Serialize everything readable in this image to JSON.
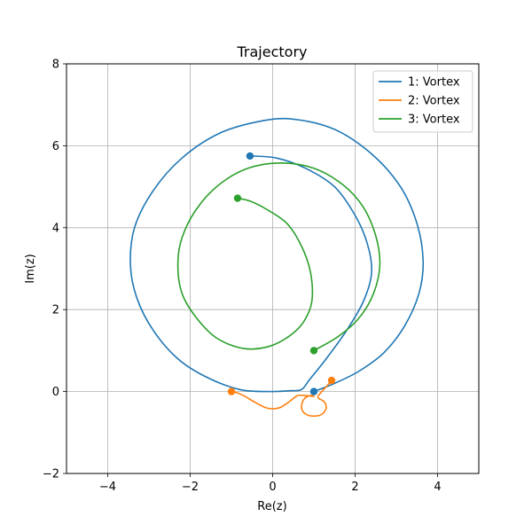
{
  "chart_data": {
    "type": "line",
    "title": "Trajectory",
    "xlabel": "Re(z)",
    "ylabel": "Im(z)",
    "xlim": [
      -5,
      5
    ],
    "ylim": [
      -2,
      8
    ],
    "xticks": [
      -4,
      -2,
      0,
      2,
      4
    ],
    "yticks": [
      -2,
      0,
      2,
      4,
      6,
      8
    ],
    "xtick_labels": [
      "−4",
      "−2",
      "0",
      "2",
      "4"
    ],
    "ytick_labels": [
      "−2",
      "0",
      "2",
      "4",
      "6",
      "8"
    ],
    "grid": true,
    "legend": {
      "position": "top-right"
    },
    "series": [
      {
        "name": "1: Vortex",
        "color": "#1f77b4",
        "start": [
          1.0,
          0.0
        ],
        "end": [
          -0.55,
          5.75
        ],
        "points": [
          [
            1.0,
            0.0
          ],
          [
            1.5,
            0.2
          ],
          [
            2.1,
            0.5
          ],
          [
            2.7,
            0.95
          ],
          [
            3.2,
            1.6
          ],
          [
            3.55,
            2.4
          ],
          [
            3.65,
            3.2
          ],
          [
            3.5,
            4.1
          ],
          [
            3.1,
            5.0
          ],
          [
            2.4,
            5.8
          ],
          [
            1.5,
            6.4
          ],
          [
            0.5,
            6.65
          ],
          [
            -0.3,
            6.6
          ],
          [
            -1.3,
            6.3
          ],
          [
            -2.2,
            5.7
          ],
          [
            -2.9,
            4.9
          ],
          [
            -3.35,
            4.0
          ],
          [
            -3.45,
            3.1
          ],
          [
            -3.3,
            2.3
          ],
          [
            -2.9,
            1.5
          ],
          [
            -2.3,
            0.8
          ],
          [
            -1.6,
            0.35
          ],
          [
            -0.8,
            0.05
          ],
          [
            -0.1,
            0.0
          ],
          [
            0.4,
            0.02
          ],
          [
            0.7,
            0.05
          ],
          [
            0.9,
            0.3
          ],
          [
            1.3,
            0.8
          ],
          [
            1.8,
            1.5
          ],
          [
            2.2,
            2.2
          ],
          [
            2.4,
            2.9
          ],
          [
            2.3,
            3.6
          ],
          [
            2.0,
            4.3
          ],
          [
            1.5,
            5.0
          ],
          [
            0.8,
            5.45
          ],
          [
            0.1,
            5.7
          ],
          [
            -0.55,
            5.75
          ]
        ]
      },
      {
        "name": "2: Vortex",
        "color": "#ff7f0e",
        "start": [
          1.43,
          0.27
        ],
        "end": [
          -1.0,
          0.0
        ],
        "points": [
          [
            1.43,
            0.27
          ],
          [
            1.3,
            0.12
          ],
          [
            1.15,
            -0.05
          ],
          [
            1.1,
            -0.15
          ],
          [
            1.25,
            -0.25
          ],
          [
            1.3,
            -0.4
          ],
          [
            1.2,
            -0.55
          ],
          [
            1.0,
            -0.6
          ],
          [
            0.8,
            -0.55
          ],
          [
            0.7,
            -0.4
          ],
          [
            0.75,
            -0.2
          ],
          [
            0.9,
            -0.1
          ],
          [
            1.0,
            -0.12
          ],
          [
            0.8,
            -0.1
          ],
          [
            0.6,
            -0.1
          ],
          [
            0.4,
            -0.25
          ],
          [
            0.2,
            -0.38
          ],
          [
            0.0,
            -0.42
          ],
          [
            -0.2,
            -0.38
          ],
          [
            -0.45,
            -0.25
          ],
          [
            -0.7,
            -0.1
          ],
          [
            -0.9,
            -0.02
          ],
          [
            -1.0,
            0.0
          ]
        ]
      },
      {
        "name": "3: Vortex",
        "color": "#2ca02c",
        "start": [
          1.0,
          1.0
        ],
        "end": [
          -0.85,
          4.72
        ],
        "points": [
          [
            1.0,
            1.0
          ],
          [
            1.6,
            1.35
          ],
          [
            2.1,
            1.8
          ],
          [
            2.45,
            2.4
          ],
          [
            2.6,
            3.1
          ],
          [
            2.5,
            3.8
          ],
          [
            2.2,
            4.5
          ],
          [
            1.7,
            5.05
          ],
          [
            1.0,
            5.45
          ],
          [
            0.2,
            5.58
          ],
          [
            -0.6,
            5.45
          ],
          [
            -1.3,
            5.05
          ],
          [
            -1.85,
            4.45
          ],
          [
            -2.2,
            3.75
          ],
          [
            -2.3,
            3.1
          ],
          [
            -2.2,
            2.4
          ],
          [
            -1.85,
            1.8
          ],
          [
            -1.35,
            1.3
          ],
          [
            -0.7,
            1.05
          ],
          [
            -0.1,
            1.1
          ],
          [
            0.4,
            1.35
          ],
          [
            0.75,
            1.7
          ],
          [
            0.95,
            2.2
          ],
          [
            0.92,
            2.9
          ],
          [
            0.7,
            3.55
          ],
          [
            0.35,
            4.1
          ],
          [
            -0.15,
            4.45
          ],
          [
            -0.55,
            4.65
          ],
          [
            -0.85,
            4.72
          ]
        ]
      }
    ]
  }
}
